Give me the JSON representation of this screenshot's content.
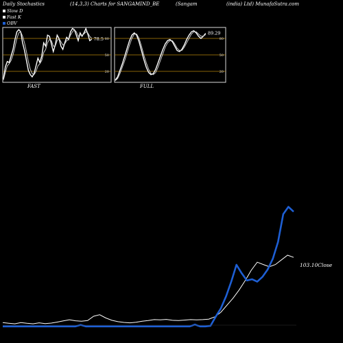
{
  "header": {
    "title": "Daily Stochastics",
    "params": "(14,3,3) Charts for SANGAMIND_BE",
    "company": "(Sangam",
    "site": "(india) Ltd) MunafaSutra.com"
  },
  "legend": [
    {
      "label": "Slow  D",
      "color": "#ffffff"
    },
    {
      "label": "Fast  K",
      "color": "#ffffff"
    },
    {
      "label": "OBV",
      "color": "#1e5fd4"
    }
  ],
  "chart_data": [
    {
      "type": "line",
      "title": "FAST",
      "ylim": [
        0,
        100
      ],
      "gridlines": [
        80,
        50,
        20
      ],
      "last_value_label": "78.5",
      "series": [
        {
          "values": [
            6,
            28,
            38,
            36,
            48,
            60,
            78,
            92,
            96,
            92,
            72,
            58,
            40,
            22,
            14,
            10,
            16,
            30,
            44,
            36,
            48,
            72,
            66,
            86,
            84,
            70,
            56,
            68,
            86,
            80,
            66,
            60,
            72,
            82,
            78,
            92,
            98,
            96,
            86,
            76,
            90,
            84,
            90,
            98,
            88,
            76,
            78.5
          ]
        },
        {
          "values": [
            4,
            18,
            30,
            34,
            40,
            50,
            64,
            80,
            90,
            92,
            84,
            72,
            56,
            38,
            24,
            16,
            14,
            20,
            30,
            34,
            40,
            54,
            60,
            72,
            78,
            76,
            66,
            66,
            76,
            80,
            74,
            68,
            70,
            76,
            78,
            86,
            92,
            96,
            92,
            84,
            86,
            86,
            88,
            92,
            90,
            84,
            80
          ]
        }
      ]
    },
    {
      "type": "line",
      "title": "FULL",
      "ylim": [
        0,
        100
      ],
      "gridlines": [
        80,
        50,
        20
      ],
      "last_value_label": "89.29",
      "series": [
        {
          "values": [
            4,
            10,
            22,
            34,
            48,
            62,
            76,
            86,
            90,
            86,
            74,
            58,
            42,
            28,
            18,
            14,
            16,
            24,
            36,
            48,
            60,
            70,
            76,
            78,
            74,
            66,
            58,
            56,
            60,
            68,
            78,
            86,
            92,
            94,
            90,
            84,
            80,
            84,
            89.29
          ]
        },
        {
          "values": [
            3,
            7,
            16,
            28,
            40,
            54,
            68,
            80,
            88,
            88,
            80,
            66,
            50,
            36,
            24,
            16,
            14,
            18,
            28,
            40,
            52,
            64,
            72,
            76,
            76,
            70,
            62,
            58,
            58,
            64,
            72,
            80,
            88,
            92,
            92,
            88,
            84,
            84,
            87
          ]
        }
      ]
    },
    {
      "type": "line",
      "close_label": "103.10Close",
      "series": [
        {
          "name": "price",
          "values": [
            47,
            46.5,
            46,
            47,
            46.4,
            46,
            46.8,
            46.2,
            46.6,
            47.5,
            48.5,
            49.5,
            48.6,
            48.2,
            48.8,
            52.5,
            53.8,
            51,
            49,
            47.8,
            47.2,
            46.8,
            47.3,
            48.2,
            48.8,
            49.6,
            49.4,
            49.8,
            49,
            48.8,
            49.2,
            49.6,
            49.4,
            49.6,
            50,
            52,
            56,
            62,
            68,
            75,
            83,
            92,
            99,
            97,
            95,
            97,
            101,
            105,
            103.1
          ]
        },
        {
          "name": "OBV",
          "values": [
            0,
            0,
            0,
            0,
            0,
            0,
            0,
            0,
            0,
            0,
            0,
            0,
            0,
            0,
            0,
            0,
            0,
            0,
            0,
            0,
            0,
            0,
            0,
            0,
            0,
            0,
            0,
            0,
            0,
            0,
            0,
            0,
            0,
            0,
            0,
            0,
            0,
            0,
            0,
            0,
            0,
            0,
            0,
            0,
            0,
            0,
            0,
            0,
            0
          ]
        }
      ],
      "obv": [
        -2,
        -2,
        -2,
        -2,
        -2,
        -2,
        -2,
        -2,
        -2,
        -2,
        -2,
        -2,
        -2,
        -2,
        -2,
        0.5,
        -2,
        -2,
        -2,
        -2,
        -2,
        -2,
        -2,
        -2,
        -2,
        -2,
        -2,
        -2,
        -2,
        -2,
        -2,
        -2,
        -2,
        -2,
        -2,
        -2,
        -2,
        1,
        -2,
        -2,
        -1,
        14,
        28,
        48,
        72,
        100,
        86,
        74,
        76,
        72,
        80,
        92,
        110,
        138,
        184,
        196,
        188
      ]
    }
  ]
}
